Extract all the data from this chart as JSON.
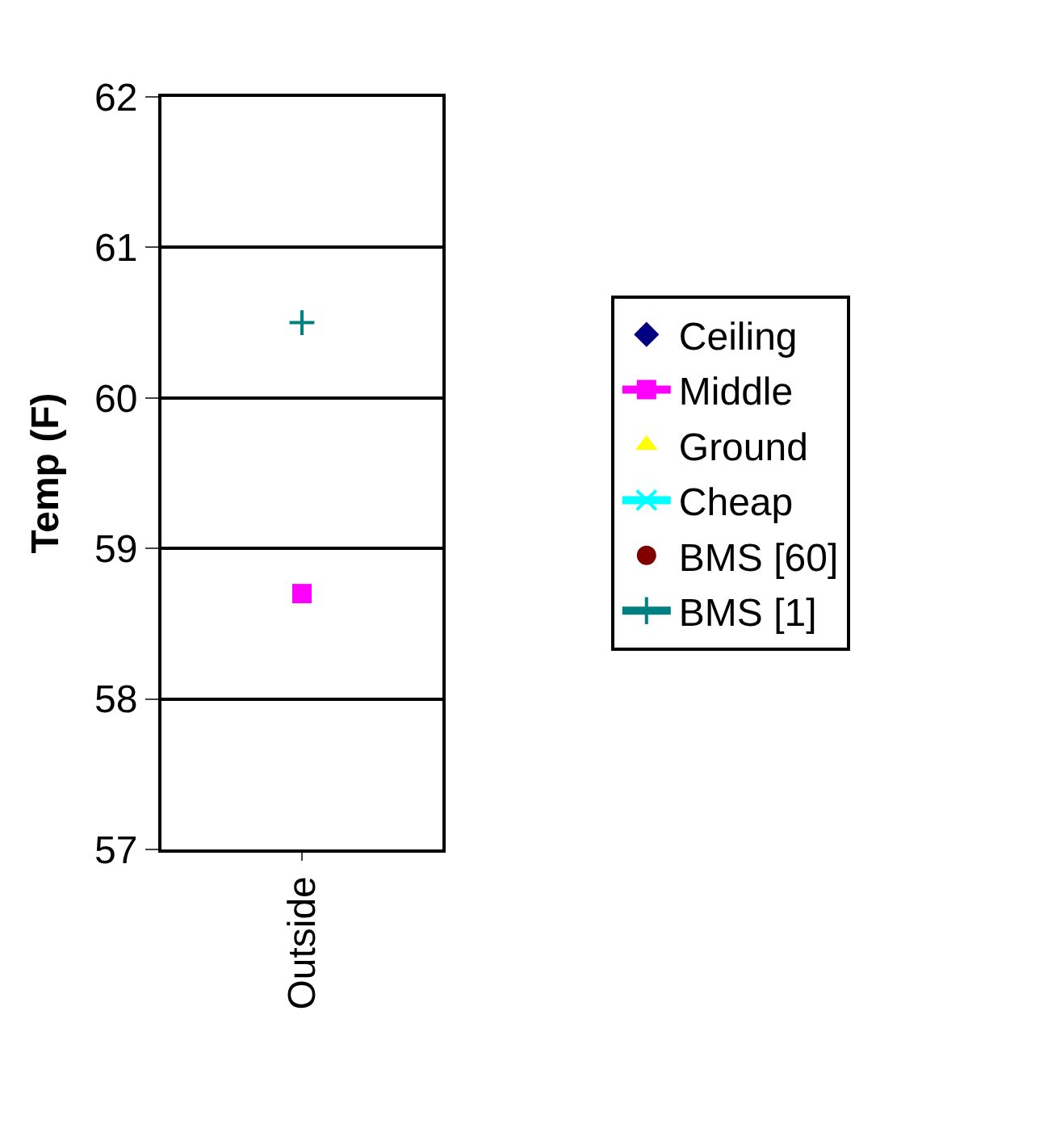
{
  "chart_data": {
    "type": "line",
    "ylabel": "Temp (F)",
    "categories": [
      "Outside"
    ],
    "ylim": [
      57,
      62
    ],
    "yticks": [
      57,
      58,
      59,
      60,
      61,
      62
    ],
    "grid": "y",
    "legend": "right",
    "series": [
      {
        "name": "Ceiling",
        "type": "scatter",
        "marker": "diamond",
        "color": "#000080",
        "values": [
          null
        ]
      },
      {
        "name": "Middle",
        "marker": "square",
        "color": "#ff00ff",
        "values": [
          58.7
        ]
      },
      {
        "name": "Ground",
        "type": "scatter",
        "marker": "triangle",
        "color": "#ffff00",
        "values": [
          null
        ]
      },
      {
        "name": "Cheap",
        "type": "line",
        "marker": "x",
        "color": "#00ffff",
        "values": [
          null
        ]
      },
      {
        "name": "BMS [60]",
        "type": "scatter",
        "marker": "circle",
        "color": "#800000",
        "values": [
          null
        ]
      },
      {
        "name": "BMS [1]",
        "marker": "cross",
        "color": "#008080",
        "values": [
          60.5
        ]
      }
    ]
  }
}
